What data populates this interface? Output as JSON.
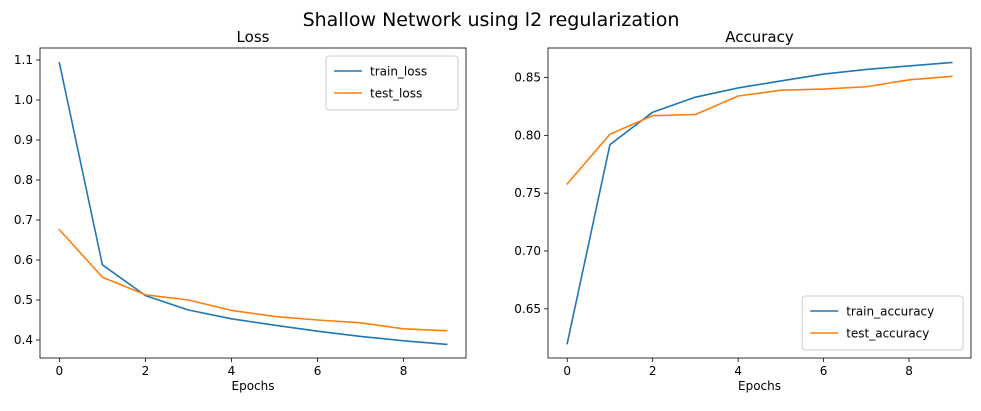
{
  "suptitle": "Shallow Network using l2 regularization",
  "chart_data": [
    {
      "type": "line",
      "title": "Loss",
      "xlabel": "Epochs",
      "ylabel": "",
      "x": [
        0,
        1,
        2,
        3,
        4,
        5,
        6,
        7,
        8,
        9
      ],
      "xlim": [
        -0.45,
        9.45
      ],
      "ylim": [
        0.355,
        1.13
      ],
      "xticks": [
        0,
        2,
        4,
        6,
        8
      ],
      "yticks": [
        0.4,
        0.5,
        0.6,
        0.7,
        0.8,
        0.9,
        1.0,
        1.1
      ],
      "ytick_labels": [
        "0.4",
        "0.5",
        "0.6",
        "0.7",
        "0.8",
        "0.9",
        "1.0",
        "1.1"
      ],
      "legend_position": "top-right",
      "grid": false,
      "series": [
        {
          "name": "train_loss",
          "color": "#1f77b4",
          "values": [
            1.093,
            0.588,
            0.511,
            0.475,
            0.453,
            0.437,
            0.422,
            0.409,
            0.398,
            0.389
          ]
        },
        {
          "name": "test_loss",
          "color": "#ff7f0e",
          "values": [
            0.676,
            0.557,
            0.513,
            0.5,
            0.474,
            0.459,
            0.45,
            0.443,
            0.428,
            0.423
          ]
        }
      ]
    },
    {
      "type": "line",
      "title": "Accuracy",
      "xlabel": "Epochs",
      "ylabel": "",
      "x": [
        0,
        1,
        2,
        3,
        4,
        5,
        6,
        7,
        8,
        9
      ],
      "xlim": [
        -0.45,
        9.45
      ],
      "ylim": [
        0.6075,
        0.8755
      ],
      "xticks": [
        0,
        2,
        4,
        6,
        8
      ],
      "yticks": [
        0.65,
        0.7,
        0.75,
        0.8,
        0.85
      ],
      "ytick_labels": [
        "0.65",
        "0.70",
        "0.75",
        "0.80",
        "0.85"
      ],
      "legend_position": "bottom-right",
      "grid": false,
      "series": [
        {
          "name": "train_accuracy",
          "color": "#1f77b4",
          "values": [
            0.62,
            0.792,
            0.82,
            0.833,
            0.841,
            0.847,
            0.853,
            0.857,
            0.86,
            0.863
          ]
        },
        {
          "name": "test_accuracy",
          "color": "#ff7f0e",
          "values": [
            0.758,
            0.801,
            0.817,
            0.818,
            0.834,
            0.839,
            0.84,
            0.842,
            0.848,
            0.851
          ]
        }
      ]
    }
  ]
}
